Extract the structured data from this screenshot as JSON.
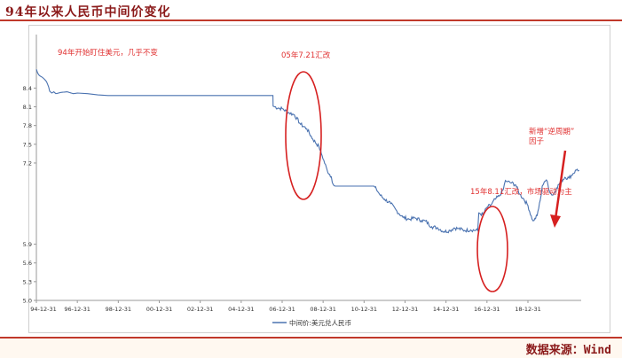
{
  "header": {
    "title": "94年以来人民币中间价变化"
  },
  "footer": {
    "source": "数据来源：Wind"
  },
  "annotations": {
    "a1": "94年开始盯住美元，几乎不变",
    "a2": "05年7.21汇改",
    "a3": "15年8.11汇改，市场驱动为主",
    "a4_line1": "新增“逆周期”",
    "a4_line2": "因子"
  },
  "colors": {
    "line": "#4a72b0",
    "annotation": "#e03030",
    "title": "#8b1a1a"
  },
  "chart_data": {
    "type": "line",
    "title": "",
    "xlabel": "",
    "ylabel": "",
    "ylim": [
      5.0,
      9.2
    ],
    "yticks": [
      5.0,
      5.3,
      5.6,
      5.9,
      7.2,
      7.5,
      7.8,
      8.1,
      8.4
    ],
    "xticks": [
      "94-12-31",
      "96-12-31",
      "98-12-31",
      "00-12-31",
      "02-12-31",
      "04-12-31",
      "06-12-31",
      "08-12-31",
      "10-12-31",
      "12-12-31",
      "14-12-31",
      "16-12-31",
      "18-12-31"
    ],
    "legend": "bottom-center",
    "series": [
      {
        "name": "中间价:美元兑人民币",
        "points": [
          [
            1994.0,
            8.7
          ],
          [
            1994.05,
            8.65
          ],
          [
            1994.1,
            8.62
          ],
          [
            1994.15,
            8.6
          ],
          [
            1994.2,
            8.59
          ],
          [
            1994.3,
            8.57
          ],
          [
            1994.4,
            8.54
          ],
          [
            1994.5,
            8.5
          ],
          [
            1994.6,
            8.42
          ],
          [
            1994.65,
            8.35
          ],
          [
            1994.75,
            8.32
          ],
          [
            1994.85,
            8.34
          ],
          [
            1994.95,
            8.31
          ],
          [
            1995.2,
            8.33
          ],
          [
            1995.5,
            8.34
          ],
          [
            1995.8,
            8.31
          ],
          [
            1996.0,
            8.32
          ],
          [
            1996.5,
            8.31
          ],
          [
            1997.0,
            8.29
          ],
          [
            1997.5,
            8.28
          ],
          [
            1998.0,
            8.28
          ],
          [
            2000.0,
            8.28
          ],
          [
            2002.0,
            8.28
          ],
          [
            2004.0,
            8.28
          ],
          [
            2005.55,
            8.28
          ],
          [
            2005.56,
            8.11
          ],
          [
            2005.8,
            8.08
          ],
          [
            2006.0,
            8.07
          ],
          [
            2006.3,
            8.01
          ],
          [
            2006.6,
            7.97
          ],
          [
            2006.9,
            7.82
          ],
          [
            2007.2,
            7.75
          ],
          [
            2007.5,
            7.58
          ],
          [
            2007.8,
            7.46
          ],
          [
            2007.95,
            7.32
          ],
          [
            2008.2,
            7.08
          ],
          [
            2008.4,
            6.98
          ],
          [
            2008.5,
            6.85
          ],
          [
            2008.6,
            6.83
          ],
          [
            2009.0,
            6.83
          ],
          [
            2010.0,
            6.83
          ],
          [
            2010.45,
            6.83
          ],
          [
            2010.6,
            6.78
          ],
          [
            2010.8,
            6.68
          ],
          [
            2011.0,
            6.62
          ],
          [
            2011.3,
            6.55
          ],
          [
            2011.6,
            6.43
          ],
          [
            2011.9,
            6.33
          ],
          [
            2012.2,
            6.3
          ],
          [
            2012.5,
            6.32
          ],
          [
            2012.8,
            6.28
          ],
          [
            2013.0,
            6.27
          ],
          [
            2013.3,
            6.18
          ],
          [
            2013.6,
            6.16
          ],
          [
            2013.9,
            6.1
          ],
          [
            2014.2,
            6.12
          ],
          [
            2014.4,
            6.16
          ],
          [
            2014.6,
            6.15
          ],
          [
            2014.9,
            6.12
          ],
          [
            2015.2,
            6.13
          ],
          [
            2015.55,
            6.12
          ],
          [
            2015.6,
            6.4
          ],
          [
            2015.8,
            6.37
          ],
          [
            2016.0,
            6.49
          ],
          [
            2016.2,
            6.53
          ],
          [
            2016.4,
            6.62
          ],
          [
            2016.6,
            6.67
          ],
          [
            2016.8,
            6.78
          ],
          [
            2016.9,
            6.92
          ],
          [
            2017.0,
            6.9
          ],
          [
            2017.2,
            6.88
          ],
          [
            2017.4,
            6.85
          ],
          [
            2017.6,
            6.7
          ],
          [
            2017.8,
            6.62
          ],
          [
            2018.0,
            6.52
          ],
          [
            2018.2,
            6.3
          ],
          [
            2018.3,
            6.28
          ],
          [
            2018.45,
            6.36
          ],
          [
            2018.6,
            6.6
          ],
          [
            2018.7,
            6.83
          ],
          [
            2018.8,
            6.9
          ],
          [
            2018.9,
            6.93
          ],
          [
            2019.1,
            6.71
          ],
          [
            2019.25,
            6.69
          ],
          [
            2019.4,
            6.8
          ],
          [
            2019.6,
            6.9
          ],
          [
            2019.8,
            6.97
          ],
          [
            2020.0,
            6.96
          ],
          [
            2020.2,
            7.03
          ],
          [
            2020.4,
            7.1
          ],
          [
            2020.5,
            7.08
          ]
        ]
      }
    ]
  }
}
